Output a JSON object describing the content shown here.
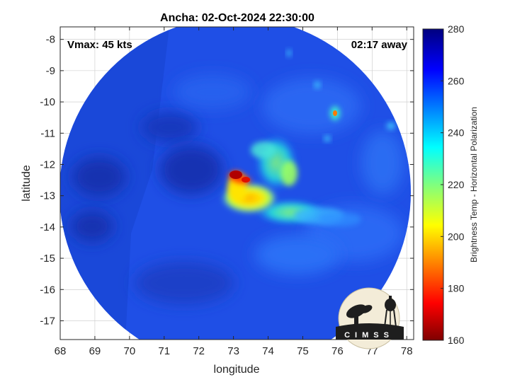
{
  "title": "Ancha: 02-Oct-2024 22:30:00",
  "vmax_label": "Vmax: 45 kts",
  "time_away": "02:17 away",
  "xlabel": "longitude",
  "ylabel": "latitude",
  "x_ticks": [
    "68",
    "69",
    "70",
    "71",
    "72",
    "73",
    "74",
    "75",
    "76",
    "77",
    "78"
  ],
  "y_ticks": [
    "-8",
    "-9",
    "-10",
    "-11",
    "-12",
    "-13",
    "-14",
    "-15",
    "-16",
    "-17"
  ],
  "colorbar": {
    "label": "Brightness Temp - Horizontal Polarization",
    "ticks": [
      "160",
      "180",
      "200",
      "220",
      "240",
      "260",
      "280"
    ],
    "min": 160,
    "max": 280
  },
  "map": {
    "lon_range": [
      68,
      78.2
    ],
    "lat_range": [
      -17.6,
      -7.6
    ],
    "swath_center": [
      73.0,
      -12.9
    ],
    "swath_radius_deg": 5.0,
    "background_temp_K": 262,
    "storm_center": [
      73.0,
      -12.3
    ],
    "grid": true
  },
  "logo": {
    "text": "CIMSS",
    "icons": [
      "satellite-dish-icon",
      "water-tower-icon"
    ]
  }
}
